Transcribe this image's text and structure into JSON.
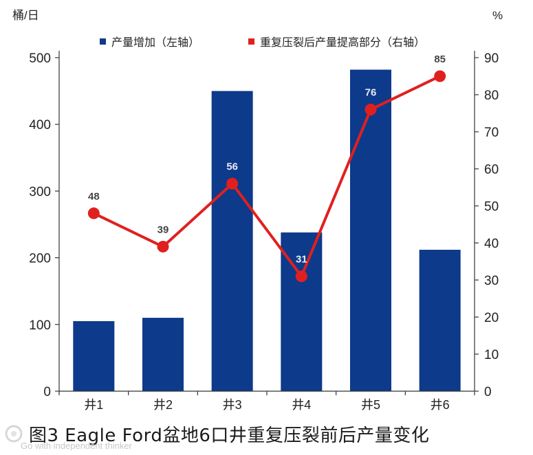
{
  "chart_data": {
    "type": "bar",
    "categories": [
      "井1",
      "井2",
      "井3",
      "井4",
      "井5",
      "井6"
    ],
    "series": [
      {
        "name": "产量增加（左轴）",
        "type": "bar",
        "axis": "left",
        "values": [
          105,
          110,
          450,
          238,
          482,
          212
        ],
        "color": "#0d3a8a"
      },
      {
        "name": "重复压裂后产量提高部分（右轴）",
        "type": "line",
        "axis": "right",
        "values": [
          48,
          39,
          56,
          31,
          76,
          85
        ],
        "labels": [
          "48",
          "39",
          "56",
          "31",
          "76",
          "85"
        ],
        "color": "#e0201f"
      }
    ],
    "left_axis": {
      "unit": "桶/日",
      "ylim": [
        0,
        500
      ],
      "ticks": [
        0,
        100,
        200,
        300,
        400,
        500
      ]
    },
    "right_axis": {
      "unit": "%",
      "ylim": [
        0,
        90
      ],
      "ticks": [
        0,
        10,
        20,
        30,
        40,
        50,
        60,
        70,
        80,
        90
      ]
    },
    "legend_position": "top",
    "grid": false
  },
  "caption": "图3  Eagle Ford盆地6口井重复压裂前后产量变化",
  "watermark": "Go with independent thinker"
}
